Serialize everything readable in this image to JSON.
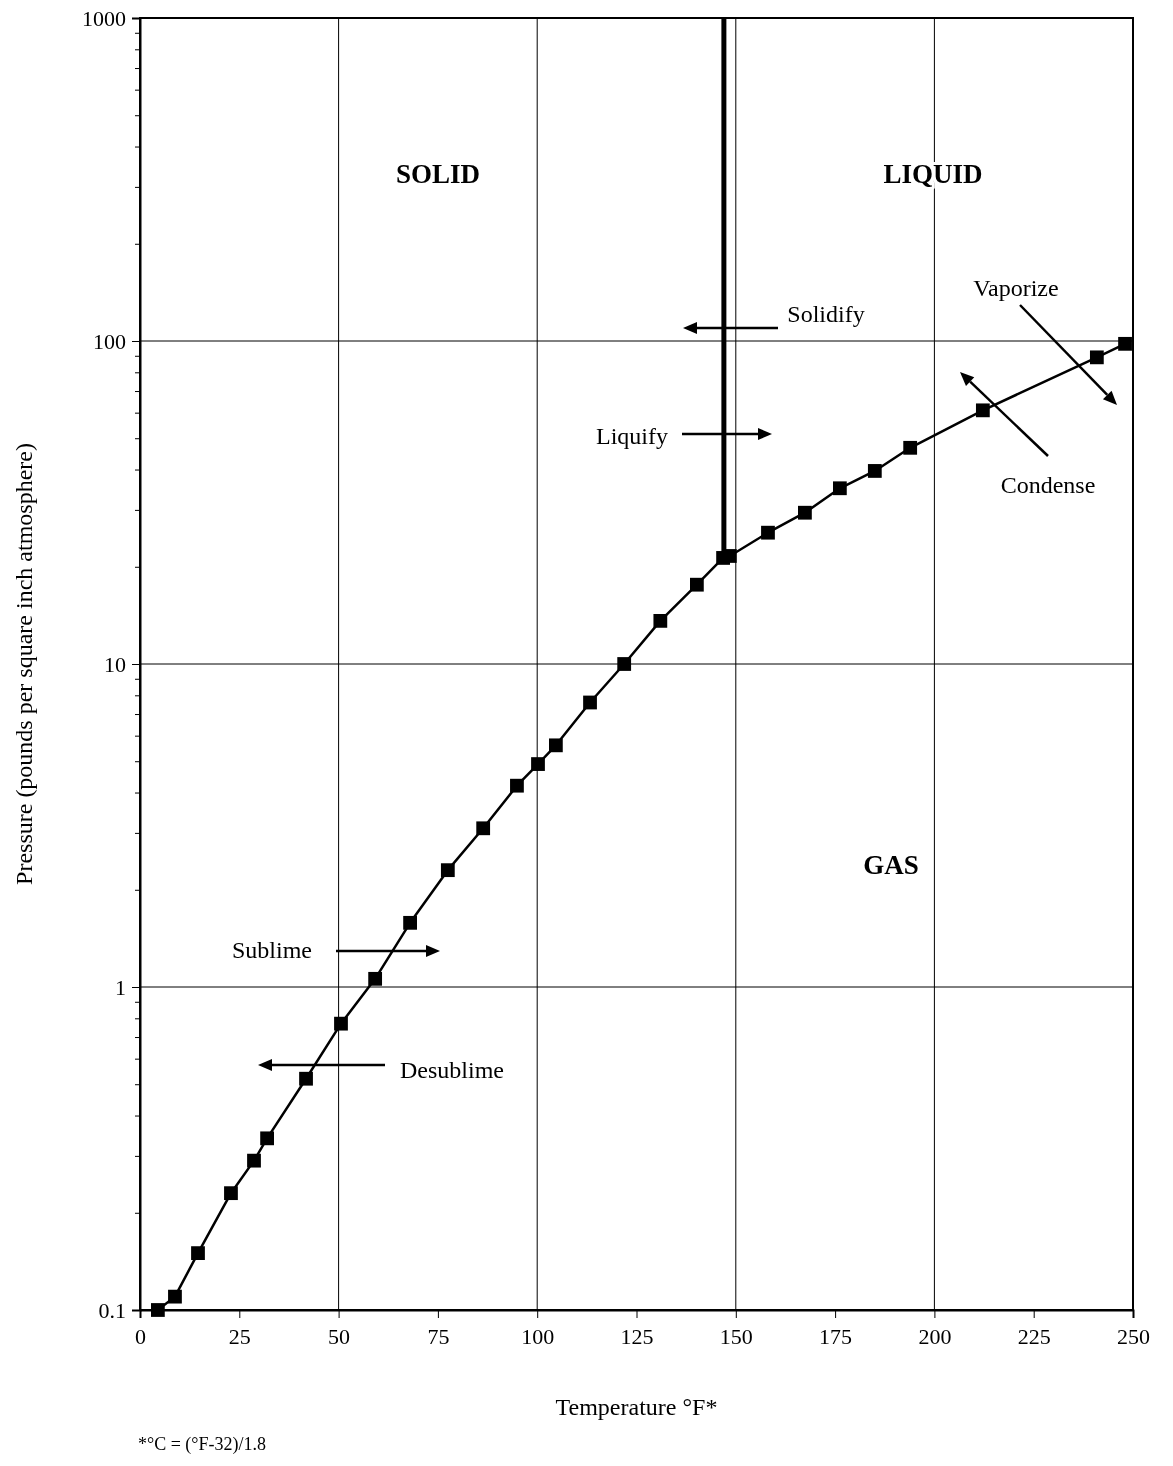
{
  "chart_data": {
    "type": "line",
    "xlabel": "Temperature °F*",
    "ylabel": "Pressure (pounds per square inch atmosphere)",
    "log": "y",
    "grid": true,
    "marker": "square",
    "line_style": "solid",
    "xlim": [
      0,
      250
    ],
    "ylim": [
      0.1,
      1000
    ],
    "xticks": [
      0,
      25,
      50,
      75,
      100,
      125,
      150,
      175,
      200,
      225,
      250
    ],
    "yticks": [
      0.1,
      {
        "value": 0.2,
        "label": null
      },
      {
        "value": 0.3,
        "label": null
      },
      {
        "value": 0.4,
        "label": null
      },
      {
        "value": 0.5,
        "label": null
      },
      {
        "value": 0.6,
        "label": null
      },
      {
        "value": 0.7,
        "label": null
      },
      {
        "value": 0.8,
        "label": null
      },
      {
        "value": 0.9,
        "label": null
      },
      1,
      {
        "value": 2,
        "label": null
      },
      {
        "value": 3,
        "label": null
      },
      {
        "value": 4,
        "label": null
      },
      {
        "value": 5,
        "label": null
      },
      {
        "value": 6,
        "label": null
      },
      {
        "value": 7,
        "label": null
      },
      {
        "value": 8,
        "label": null
      },
      {
        "value": 9,
        "label": null
      },
      10,
      {
        "value": 20,
        "label": null
      },
      {
        "value": 30,
        "label": null
      },
      {
        "value": 40,
        "label": null
      },
      {
        "value": 50,
        "label": null
      },
      {
        "value": 60,
        "label": null
      },
      {
        "value": 70,
        "label": null
      },
      {
        "value": 80,
        "label": null
      },
      {
        "value": 90,
        "label": null
      },
      100,
      {
        "value": 200,
        "label": null
      },
      {
        "value": 300,
        "label": null
      },
      {
        "value": 400,
        "label": null
      },
      {
        "value": 500,
        "label": null
      },
      {
        "value": 600,
        "label": null
      },
      {
        "value": 700,
        "label": null
      },
      {
        "value": 800,
        "label": null
      },
      {
        "value": 900,
        "label": null
      },
      1000
    ],
    "series": [
      {
        "color": "#000000",
        "x": [
          4.5,
          8.8,
          14.6,
          22.9,
          28.7,
          32,
          41.8,
          50.6,
          59.2,
          68,
          77.5,
          86.4,
          94.9,
          100.2,
          104.7,
          113.3,
          121.9,
          131,
          140.2,
          146.8,
          148.5,
          158.1,
          167.4,
          176.2,
          185,
          193.9,
          212.2,
          240.9,
          248
        ],
        "values": [
          0.1,
          0.11,
          0.15,
          0.23,
          0.29,
          0.34,
          0.52,
          0.77,
          1.06,
          1.58,
          2.3,
          3.1,
          4.2,
          4.9,
          5.6,
          7.6,
          10,
          13.6,
          17.6,
          21.3,
          21.6,
          25.5,
          29.4,
          35,
          39.6,
          46.7,
          61,
          89,
          98
        ]
      },
      {
        "color": "#000000",
        "marker": "none",
        "x": [
          147,
          147
        ],
        "values": [
          21.5,
          1000
        ]
      }
    ],
    "annotations": [
      "SOLID",
      "LIQUID",
      "GAS",
      "Solidify",
      "Liquify",
      "Sublime",
      "Desublime",
      "Vaporize",
      "Condense",
      "*°C = (°F-32)/1.8"
    ]
  }
}
